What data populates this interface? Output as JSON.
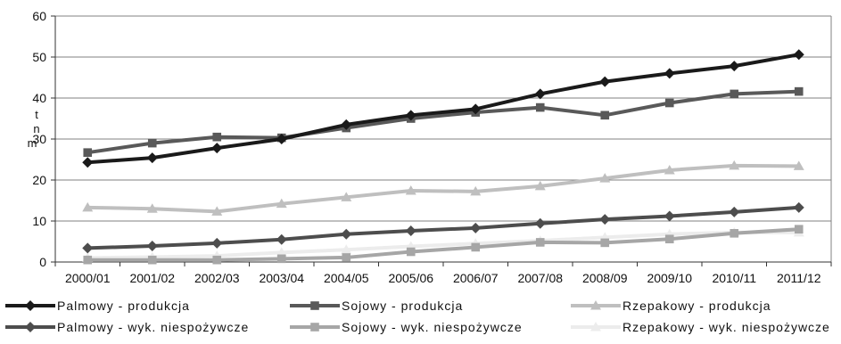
{
  "chart_data": {
    "type": "line",
    "title": "",
    "xlabel": "",
    "ylabel": "mln t",
    "ylabel_chars": [
      "t",
      "n",
      "m"
    ],
    "ylim": [
      0,
      60
    ],
    "yticks": [
      "0",
      "10",
      "20",
      "30",
      "40",
      "50",
      "60"
    ],
    "grid": true,
    "legend_position": "bottom",
    "categories": [
      "2000/01",
      "2001/02",
      "2002/03",
      "2003/04",
      "2004/05",
      "2005/06",
      "2006/07",
      "2007/08",
      "2008/09",
      "2009/10",
      "2010/11",
      "2011/12"
    ],
    "series": [
      {
        "name": "Palmowy - produkcja",
        "color": "#1a1a1a",
        "marker": "diamond",
        "values": [
          24.3,
          25.4,
          27.8,
          30.0,
          33.5,
          35.8,
          37.3,
          41.0,
          44.0,
          46.0,
          47.8,
          50.6
        ]
      },
      {
        "name": "Sojowy - produkcja",
        "color": "#595959",
        "marker": "square",
        "values": [
          26.7,
          29.0,
          30.5,
          30.3,
          32.7,
          35.0,
          36.5,
          37.7,
          35.8,
          38.8,
          41.0,
          41.6
        ]
      },
      {
        "name": "Rzepakowy - produkcja",
        "color": "#bfbfbf",
        "marker": "triangle",
        "values": [
          13.3,
          13.0,
          12.3,
          14.2,
          15.8,
          17.4,
          17.2,
          18.5,
          20.4,
          22.4,
          23.5,
          23.4
        ]
      },
      {
        "name": "Palmowy - wyk. niespożywcze",
        "color": "#4d4d4d",
        "marker": "diamond",
        "values": [
          3.4,
          3.9,
          4.6,
          5.5,
          6.8,
          7.6,
          8.3,
          9.4,
          10.4,
          11.2,
          12.2,
          13.3
        ]
      },
      {
        "name": "Sojowy - wyk. niespożywcze",
        "color": "#a6a6a6",
        "marker": "square",
        "values": [
          0.5,
          0.5,
          0.5,
          0.8,
          1.1,
          2.5,
          3.6,
          4.8,
          4.7,
          5.6,
          7.0,
          8.0
        ]
      },
      {
        "name": "Rzepakowy - wyk. niespożywcze",
        "color": "#ececec",
        "marker": "triangle",
        "values": [
          1.0,
          1.2,
          1.5,
          2.3,
          3.0,
          3.8,
          4.5,
          5.2,
          6.0,
          6.8,
          7.2,
          7.2
        ]
      }
    ]
  }
}
